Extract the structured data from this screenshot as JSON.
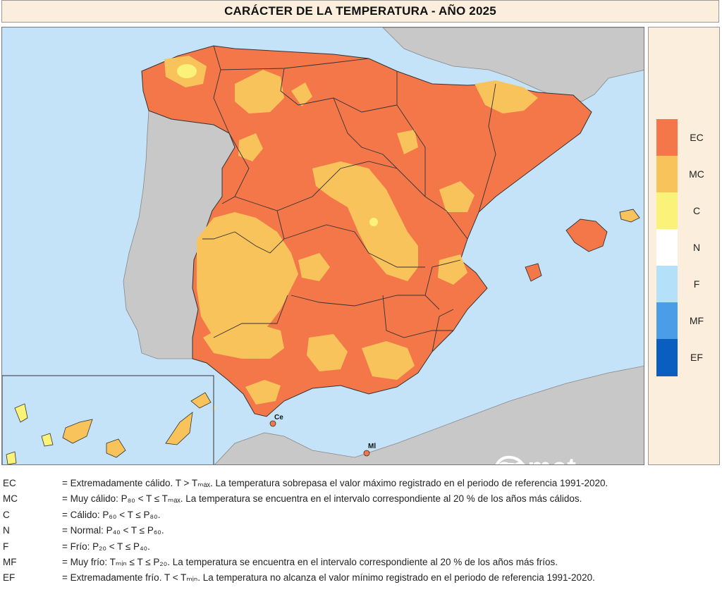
{
  "title": "CARÁCTER DE LA TEMPERATURA - AÑO 2025",
  "legend": [
    {
      "code": "EC",
      "color": "#f4774a"
    },
    {
      "code": "MC",
      "color": "#f9c35c"
    },
    {
      "code": "C",
      "color": "#fbf27a"
    },
    {
      "code": "N",
      "color": "#ffffff"
    },
    {
      "code": "F",
      "color": "#b5e0fa"
    },
    {
      "code": "MF",
      "color": "#4c9de8"
    },
    {
      "code": "EF",
      "color": "#0a5ec0"
    }
  ],
  "map": {
    "sea_color": "#c5e3f8",
    "foreign_land_color": "#c8c8c8",
    "places": [
      {
        "label": "Ce"
      },
      {
        "label": "Ml"
      }
    ],
    "logo_text": "aemet",
    "logo_icon": "aemet-swirl-icon"
  },
  "footnotes": [
    {
      "code": "EC",
      "text": "= Extremadamente cálido. T > Tₘₐₓ. La temperatura sobrepasa el valor máximo registrado en el periodo de referencia 1991-2020."
    },
    {
      "code": "MC",
      "text": "= Muy cálido: P₈₀ < T ≤ Tₘₐₓ. La temperatura se encuentra en el intervalo correspondiente al 20 % de los años más cálidos."
    },
    {
      "code": "C",
      "text": "= Cálido: P₆₀ < T ≤ P₈₀."
    },
    {
      "code": "N",
      "text": "= Normal: P₄₀ < T ≤ P₆₀."
    },
    {
      "code": "F",
      "text": "= Frío: P₂₀ < T ≤ P₄₀."
    },
    {
      "code": "MF",
      "text": "= Muy frío: Tₘᵢₙ ≤ T ≤ P₂₀. La temperatura se encuentra en el intervalo correspondiente al 20 % de los años más fríos."
    },
    {
      "code": "EF",
      "text": "= Extremadamente frío. T < Tₘᵢₙ. La temperatura no alcanza el valor mínimo registrado en el periodo de referencia 1991-2020."
    }
  ]
}
